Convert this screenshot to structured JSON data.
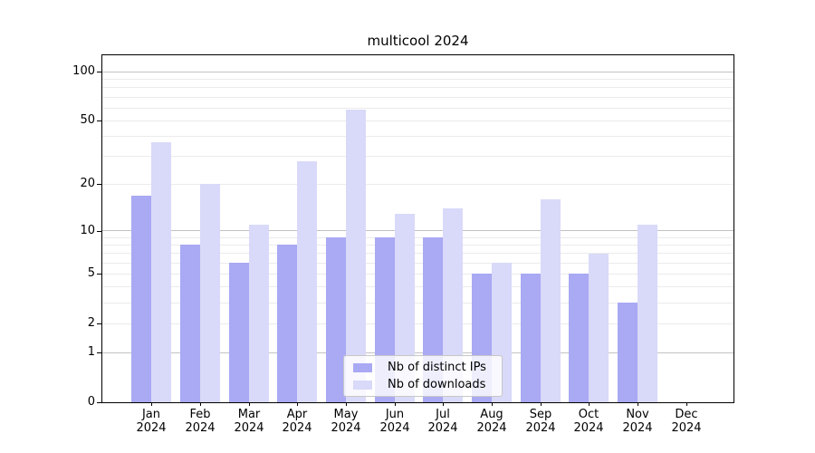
{
  "figure": {
    "title": "multicool 2024",
    "colors": {
      "distinct_ips": "#a9a9f4",
      "downloads": "#d9d9f9",
      "grid_major": "#c2c2c2",
      "grid_minor": "#ebebeb",
      "spine": "#000000",
      "text": "#000000"
    }
  },
  "legend": {
    "items": [
      {
        "label": "Nb of distinct IPs",
        "color": "#a9a9f4"
      },
      {
        "label": "Nb of downloads",
        "color": "#d9d9f9"
      }
    ]
  },
  "y_axis": {
    "ticks": [
      {
        "label": "100",
        "value": 100
      },
      {
        "label": "50",
        "value": 50
      },
      {
        "label": "20",
        "value": 20
      },
      {
        "label": "10",
        "value": 10
      },
      {
        "label": "5",
        "value": 5
      },
      {
        "label": "2",
        "value": 2
      },
      {
        "label": "1",
        "value": 1
      },
      {
        "label": "0",
        "value": 0
      }
    ],
    "major_gridlines": [
      1,
      10,
      100
    ],
    "minor_gridlines": [
      2,
      3,
      4,
      5,
      6,
      7,
      8,
      9,
      20,
      30,
      40,
      50,
      60,
      70,
      80,
      90
    ]
  },
  "x_axis": {
    "categories": [
      {
        "month": "Jan",
        "year": "2024"
      },
      {
        "month": "Feb",
        "year": "2024"
      },
      {
        "month": "Mar",
        "year": "2024"
      },
      {
        "month": "Apr",
        "year": "2024"
      },
      {
        "month": "May",
        "year": "2024"
      },
      {
        "month": "Jun",
        "year": "2024"
      },
      {
        "month": "Jul",
        "year": "2024"
      },
      {
        "month": "Aug",
        "year": "2024"
      },
      {
        "month": "Sep",
        "year": "2024"
      },
      {
        "month": "Oct",
        "year": "2024"
      },
      {
        "month": "Nov",
        "year": "2024"
      },
      {
        "month": "Dec",
        "year": "2024"
      }
    ]
  },
  "chart_data": {
    "type": "bar",
    "title": "multicool 2024",
    "categories": [
      "Jan 2024",
      "Feb 2024",
      "Mar 2024",
      "Apr 2024",
      "May 2024",
      "Jun 2024",
      "Jul 2024",
      "Aug 2024",
      "Sep 2024",
      "Oct 2024",
      "Nov 2024",
      "Dec 2024"
    ],
    "series": [
      {
        "name": "Nb of distinct IPs",
        "color": "#a9a9f4",
        "values": [
          17,
          8,
          6,
          8,
          9,
          9,
          9,
          5,
          5,
          5,
          3,
          0
        ]
      },
      {
        "name": "Nb of downloads",
        "color": "#d9d9f9",
        "values": [
          37,
          20,
          11,
          28,
          59,
          13,
          14,
          6,
          16,
          7,
          11,
          0
        ]
      }
    ],
    "yscale": "log1p",
    "y_ticks": [
      0,
      1,
      2,
      5,
      10,
      20,
      50,
      100
    ],
    "ylim": [
      0,
      127
    ],
    "grid": true,
    "legend_position": "lower-center"
  }
}
